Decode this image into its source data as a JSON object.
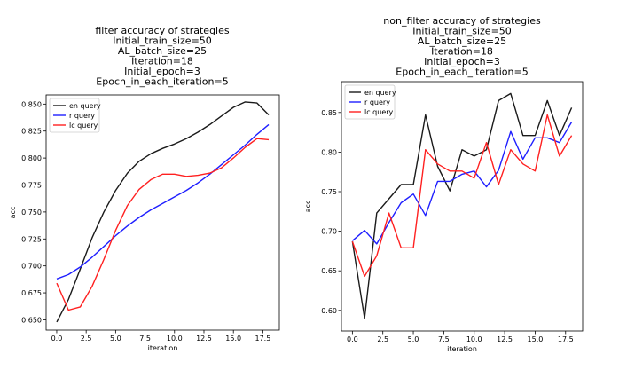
{
  "chart_data": [
    {
      "type": "line",
      "title_lines": [
        "filter accuracy of strategies",
        "Initial_train_size=50",
        "AL_batch_size=25",
        "Iteration=18",
        "Initial_epoch=3",
        "Epoch_in_each_iteration=5"
      ],
      "xlabel": "iteration",
      "ylabel": "acc",
      "xlim": [
        -0.9,
        18.9
      ],
      "ylim": [
        0.6405,
        0.8585
      ],
      "xticks": [
        0.0,
        2.5,
        5.0,
        7.5,
        10.0,
        12.5,
        15.0,
        17.5
      ],
      "xtick_labels": [
        "0.0",
        "2.5",
        "5.0",
        "7.5",
        "10.0",
        "12.5",
        "15.0",
        "17.5"
      ],
      "yticks": [
        0.65,
        0.675,
        0.7,
        0.725,
        0.75,
        0.775,
        0.8,
        0.825,
        0.85
      ],
      "ytick_labels": [
        "0.650",
        "0.675",
        "0.700",
        "0.725",
        "0.750",
        "0.775",
        "0.800",
        "0.825",
        "0.850"
      ],
      "legend_position": "top-left",
      "grid": false,
      "x": [
        0,
        1,
        2,
        3,
        4,
        5,
        6,
        7,
        8,
        9,
        10,
        11,
        12,
        13,
        14,
        15,
        16,
        17,
        18
      ],
      "series": [
        {
          "name": "en query",
          "color": "#1a1a1a",
          "values": [
            0.648,
            0.669,
            0.697,
            0.726,
            0.75,
            0.77,
            0.786,
            0.797,
            0.804,
            0.809,
            0.813,
            0.818,
            0.824,
            0.831,
            0.839,
            0.847,
            0.852,
            0.851,
            0.84
          ]
        },
        {
          "name": "r query",
          "color": "#1f1fff",
          "values": [
            0.688,
            0.692,
            0.699,
            0.708,
            0.718,
            0.728,
            0.737,
            0.745,
            0.752,
            0.758,
            0.764,
            0.77,
            0.777,
            0.785,
            0.794,
            0.803,
            0.812,
            0.822,
            0.831
          ]
        },
        {
          "name": "lc query",
          "color": "#ff2020",
          "values": [
            0.684,
            0.659,
            0.662,
            0.681,
            0.706,
            0.733,
            0.756,
            0.771,
            0.78,
            0.785,
            0.785,
            0.783,
            0.784,
            0.786,
            0.791,
            0.8,
            0.81,
            0.818,
            0.817
          ]
        }
      ]
    },
    {
      "type": "line",
      "title_lines": [
        "non_filter accuracy of strategies",
        "Initial_train_size=50",
        "AL_batch_size=25",
        "Iteration=18",
        "Initial_epoch=3",
        "Epoch_in_each_iteration=5"
      ],
      "xlabel": "iteration",
      "ylabel": "acc",
      "xlim": [
        -0.9,
        18.9
      ],
      "ylim": [
        0.574,
        0.889
      ],
      "xticks": [
        0.0,
        2.5,
        5.0,
        7.5,
        10.0,
        12.5,
        15.0,
        17.5
      ],
      "xtick_labels": [
        "0.0",
        "2.5",
        "5.0",
        "7.5",
        "10.0",
        "12.5",
        "15.0",
        "17.5"
      ],
      "yticks": [
        0.6,
        0.65,
        0.7,
        0.75,
        0.8,
        0.85
      ],
      "ytick_labels": [
        "0.60",
        "0.65",
        "0.70",
        "0.75",
        "0.80",
        "0.85"
      ],
      "legend_position": "top-left",
      "grid": false,
      "x": [
        0,
        1,
        2,
        3,
        4,
        5,
        6,
        7,
        8,
        9,
        10,
        11,
        12,
        13,
        14,
        15,
        16,
        17,
        18
      ],
      "series": [
        {
          "name": "en query",
          "color": "#1a1a1a",
          "values": [
            0.687,
            0.59,
            0.723,
            0.741,
            0.759,
            0.759,
            0.847,
            0.782,
            0.751,
            0.803,
            0.795,
            0.803,
            0.865,
            0.874,
            0.821,
            0.821,
            0.865,
            0.821,
            0.856
          ]
        },
        {
          "name": "r query",
          "color": "#1f1fff",
          "values": [
            0.688,
            0.701,
            0.684,
            0.711,
            0.736,
            0.747,
            0.72,
            0.763,
            0.763,
            0.772,
            0.776,
            0.756,
            0.777,
            0.826,
            0.791,
            0.818,
            0.818,
            0.812,
            0.838
          ]
        },
        {
          "name": "lc query",
          "color": "#ff2020",
          "values": [
            0.687,
            0.643,
            0.669,
            0.723,
            0.679,
            0.679,
            0.803,
            0.785,
            0.776,
            0.776,
            0.767,
            0.812,
            0.759,
            0.803,
            0.785,
            0.776,
            0.847,
            0.795,
            0.821
          ]
        }
      ]
    }
  ]
}
